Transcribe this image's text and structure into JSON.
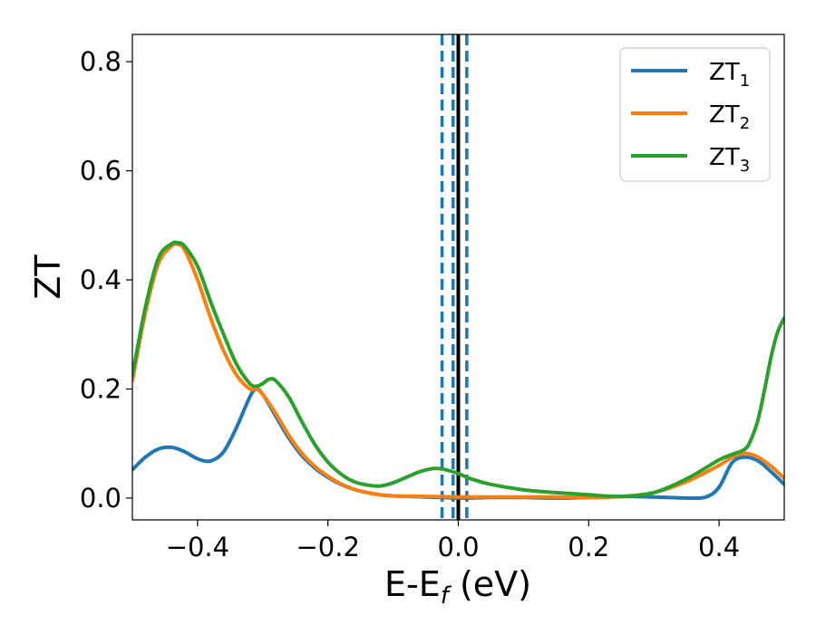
{
  "chart_data": {
    "type": "line",
    "xlabel": "E-E",
    "xlabel_subscript": "f",
    "xlabel_unit": " (eV)",
    "ylabel": "ZT",
    "xlim": [
      -0.5,
      0.5
    ],
    "ylim": [
      -0.04,
      0.85
    ],
    "x_ticks": [
      -0.4,
      -0.2,
      0.0,
      0.2,
      0.4
    ],
    "x_tick_labels": [
      "−0.4",
      "−0.2",
      "0.0",
      "0.2",
      "0.4"
    ],
    "y_ticks": [
      0.0,
      0.2,
      0.4,
      0.6,
      0.8
    ],
    "y_tick_labels": [
      "0.0",
      "0.2",
      "0.4",
      "0.6",
      "0.8"
    ],
    "grid": false,
    "legend_position": "top-right",
    "vertical_lines": [
      {
        "x": 0.0,
        "style": "solid",
        "color": "#000000"
      },
      {
        "x": -0.025,
        "style": "dashed",
        "color": "#1f77b4"
      },
      {
        "x": -0.008,
        "style": "dashed",
        "color": "#1f77b4"
      },
      {
        "x": 0.013,
        "style": "dashed",
        "color": "#1f77b4"
      }
    ],
    "series": [
      {
        "name": "ZT",
        "subscript": "1",
        "color": "#1f77b4",
        "x": [
          -0.5,
          -0.48,
          -0.46,
          -0.44,
          -0.42,
          -0.4,
          -0.38,
          -0.36,
          -0.34,
          -0.32,
          -0.31,
          -0.3,
          -0.28,
          -0.26,
          -0.24,
          -0.22,
          -0.2,
          -0.18,
          -0.16,
          -0.14,
          -0.12,
          -0.1,
          -0.05,
          0.0,
          0.05,
          0.1,
          0.15,
          0.2,
          0.25,
          0.3,
          0.35,
          0.38,
          0.4,
          0.42,
          0.44,
          0.46,
          0.48,
          0.5
        ],
        "y": [
          0.052,
          0.075,
          0.09,
          0.093,
          0.085,
          0.072,
          0.068,
          0.085,
          0.13,
          0.185,
          0.2,
          0.19,
          0.15,
          0.11,
          0.078,
          0.055,
          0.038,
          0.025,
          0.016,
          0.01,
          0.006,
          0.004,
          0.002,
          0.0,
          0.001,
          0.001,
          0.0,
          0.001,
          0.003,
          0.002,
          0.0,
          0.002,
          0.02,
          0.065,
          0.075,
          0.068,
          0.048,
          0.025
        ]
      },
      {
        "name": "ZT",
        "subscript": "2",
        "color": "#ff7f0e",
        "x": [
          -0.5,
          -0.48,
          -0.46,
          -0.44,
          -0.43,
          -0.42,
          -0.4,
          -0.38,
          -0.36,
          -0.34,
          -0.32,
          -0.31,
          -0.3,
          -0.28,
          -0.26,
          -0.24,
          -0.22,
          -0.2,
          -0.18,
          -0.16,
          -0.14,
          -0.12,
          -0.1,
          -0.05,
          0.0,
          0.05,
          0.1,
          0.15,
          0.2,
          0.25,
          0.3,
          0.35,
          0.4,
          0.42,
          0.44,
          0.46,
          0.48,
          0.5
        ],
        "y": [
          0.215,
          0.34,
          0.43,
          0.462,
          0.465,
          0.455,
          0.4,
          0.33,
          0.27,
          0.225,
          0.2,
          0.2,
          0.19,
          0.155,
          0.115,
          0.082,
          0.058,
          0.04,
          0.026,
          0.016,
          0.01,
          0.006,
          0.004,
          0.003,
          0.002,
          0.002,
          0.002,
          0.002,
          0.001,
          0.003,
          0.01,
          0.03,
          0.06,
          0.075,
          0.082,
          0.075,
          0.058,
          0.036
        ]
      },
      {
        "name": "ZT",
        "subscript": "3",
        "color": "#2ca02c",
        "x": [
          -0.5,
          -0.48,
          -0.46,
          -0.44,
          -0.43,
          -0.42,
          -0.4,
          -0.38,
          -0.36,
          -0.34,
          -0.32,
          -0.31,
          -0.3,
          -0.29,
          -0.28,
          -0.26,
          -0.24,
          -0.22,
          -0.2,
          -0.18,
          -0.16,
          -0.14,
          -0.12,
          -0.1,
          -0.08,
          -0.06,
          -0.04,
          -0.03,
          -0.02,
          0.0,
          0.02,
          0.05,
          0.1,
          0.15,
          0.2,
          0.25,
          0.3,
          0.35,
          0.4,
          0.42,
          0.44,
          0.45,
          0.46,
          0.47,
          0.48,
          0.49,
          0.5
        ],
        "y": [
          0.225,
          0.35,
          0.44,
          0.466,
          0.468,
          0.462,
          0.425,
          0.36,
          0.3,
          0.245,
          0.21,
          0.205,
          0.21,
          0.218,
          0.215,
          0.185,
          0.14,
          0.098,
          0.066,
          0.044,
          0.03,
          0.024,
          0.022,
          0.028,
          0.038,
          0.048,
          0.054,
          0.054,
          0.052,
          0.045,
          0.035,
          0.025,
          0.015,
          0.01,
          0.006,
          0.003,
          0.01,
          0.035,
          0.07,
          0.08,
          0.09,
          0.11,
          0.145,
          0.2,
          0.26,
          0.305,
          0.33
        ]
      }
    ]
  }
}
